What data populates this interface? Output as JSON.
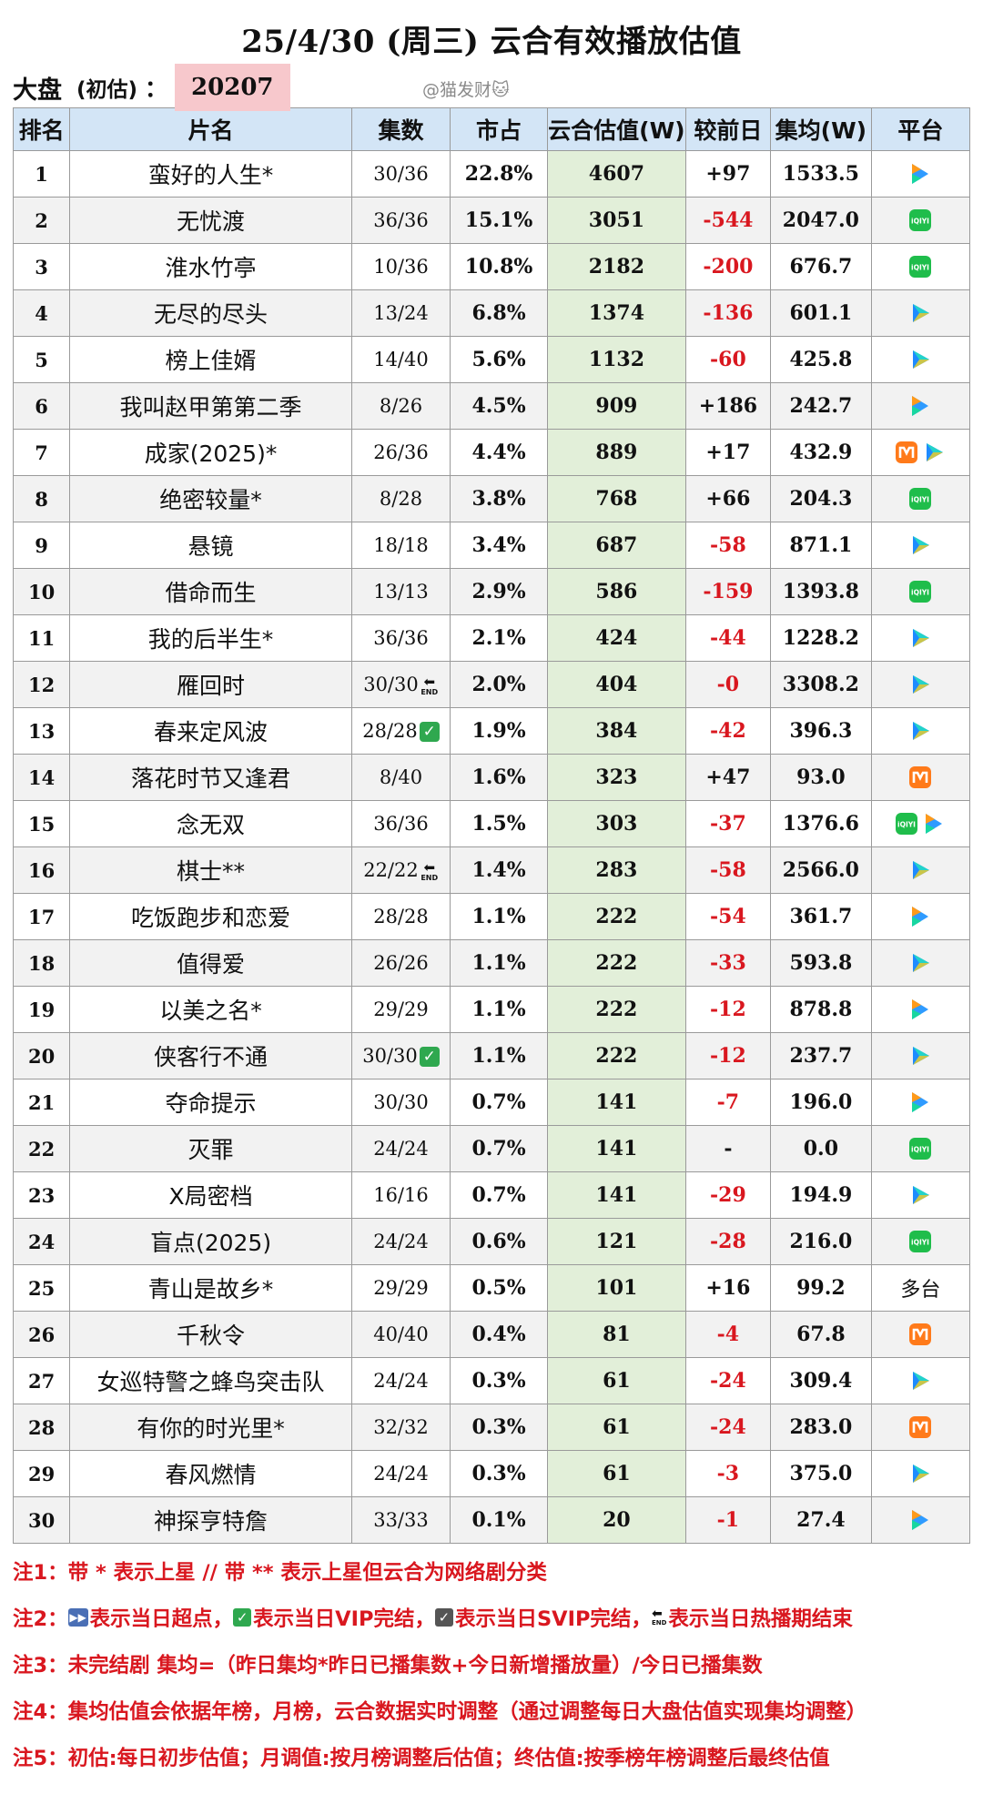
{
  "header": {
    "title": "25/4/30 (周三) 云合有效播放估值",
    "market_label": "大盘",
    "est_label": "(初估)",
    "colon": "：",
    "market_value": "20207",
    "watermark": "@猫发财🐱"
  },
  "columns": [
    "排名",
    "片名",
    "集数",
    "市占",
    "云合估值(W)",
    "较前日",
    "集均(W)",
    "平台"
  ],
  "platforms": {
    "tencent": {
      "colors": [
        "#ff9a1a",
        "#2f9bff",
        "#18d6a0"
      ]
    },
    "iqiyi": {
      "color": "#1fbd4b",
      "text": "iQIYI"
    },
    "youku": {
      "colors": [
        "#1e8bff",
        "#23d3c9",
        "#f5d31b"
      ]
    },
    "mango": {
      "color": "#ff7a1a"
    }
  },
  "rows": [
    {
      "rank": "1",
      "name": "蛮好的人生*",
      "eps": "30/36",
      "share": "22.8%",
      "value": "4607",
      "change": "+97",
      "avg": "1533.5",
      "platforms": [
        "tencent"
      ]
    },
    {
      "rank": "2",
      "name": "无忧渡",
      "eps": "36/36",
      "share": "15.1%",
      "value": "3051",
      "change": "-544",
      "avg": "2047.0",
      "platforms": [
        "iqiyi"
      ]
    },
    {
      "rank": "3",
      "name": "淮水竹亭",
      "eps": "10/36",
      "share": "10.8%",
      "value": "2182",
      "change": "-200",
      "avg": "676.7",
      "platforms": [
        "iqiyi"
      ]
    },
    {
      "rank": "4",
      "name": "无尽的尽头",
      "eps": "13/24",
      "share": "6.8%",
      "value": "1374",
      "change": "-136",
      "avg": "601.1",
      "platforms": [
        "youku"
      ]
    },
    {
      "rank": "5",
      "name": "榜上佳婿",
      "eps": "14/40",
      "share": "5.6%",
      "value": "1132",
      "change": "-60",
      "avg": "425.8",
      "platforms": [
        "youku"
      ]
    },
    {
      "rank": "6",
      "name": "我叫赵甲第第二季",
      "eps": "8/26",
      "share": "4.5%",
      "value": "909",
      "change": "+186",
      "avg": "242.7",
      "platforms": [
        "tencent"
      ]
    },
    {
      "rank": "7",
      "name": "成家(2025)*",
      "eps": "26/36",
      "share": "4.4%",
      "value": "889",
      "change": "+17",
      "avg": "432.9",
      "platforms": [
        "mango",
        "youku"
      ]
    },
    {
      "rank": "8",
      "name": "绝密较量*",
      "eps": "8/28",
      "share": "3.8%",
      "value": "768",
      "change": "+66",
      "avg": "204.3",
      "platforms": [
        "iqiyi"
      ]
    },
    {
      "rank": "9",
      "name": "悬镜",
      "eps": "18/18",
      "share": "3.4%",
      "value": "687",
      "change": "-58",
      "avg": "871.1",
      "platforms": [
        "youku"
      ]
    },
    {
      "rank": "10",
      "name": "借命而生",
      "eps": "13/13",
      "share": "2.9%",
      "value": "586",
      "change": "-159",
      "avg": "1393.8",
      "platforms": [
        "iqiyi"
      ]
    },
    {
      "rank": "11",
      "name": "我的后半生*",
      "eps": "36/36",
      "share": "2.1%",
      "value": "424",
      "change": "-44",
      "avg": "1228.2",
      "platforms": [
        "youku"
      ]
    },
    {
      "rank": "12",
      "name": "雁回时",
      "eps": "30/30",
      "badge": "end",
      "share": "2.0%",
      "value": "404",
      "change": "-0",
      "avg": "3308.2",
      "platforms": [
        "youku"
      ]
    },
    {
      "rank": "13",
      "name": "春来定风波",
      "eps": "28/28",
      "badge": "vip",
      "share": "1.9%",
      "value": "384",
      "change": "-42",
      "avg": "396.3",
      "platforms": [
        "youku"
      ]
    },
    {
      "rank": "14",
      "name": "落花时节又逢君",
      "eps": "8/40",
      "share": "1.6%",
      "value": "323",
      "change": "+47",
      "avg": "93.0",
      "platforms": [
        "mango"
      ]
    },
    {
      "rank": "15",
      "name": "念无双",
      "eps": "36/36",
      "share": "1.5%",
      "value": "303",
      "change": "-37",
      "avg": "1376.6",
      "platforms": [
        "iqiyi",
        "tencent"
      ]
    },
    {
      "rank": "16",
      "name": "棋士**",
      "eps": "22/22",
      "badge": "end",
      "share": "1.4%",
      "value": "283",
      "change": "-58",
      "avg": "2566.0",
      "platforms": [
        "youku"
      ]
    },
    {
      "rank": "17",
      "name": "吃饭跑步和恋爱",
      "eps": "28/28",
      "share": "1.1%",
      "value": "222",
      "change": "-54",
      "avg": "361.7",
      "platforms": [
        "tencent"
      ]
    },
    {
      "rank": "18",
      "name": "值得爱",
      "eps": "26/26",
      "share": "1.1%",
      "value": "222",
      "change": "-33",
      "avg": "593.8",
      "platforms": [
        "youku"
      ]
    },
    {
      "rank": "19",
      "name": "以美之名*",
      "eps": "29/29",
      "share": "1.1%",
      "value": "222",
      "change": "-12",
      "avg": "878.8",
      "platforms": [
        "tencent"
      ]
    },
    {
      "rank": "20",
      "name": "侠客行不通",
      "eps": "30/30",
      "badge": "vip",
      "share": "1.1%",
      "value": "222",
      "change": "-12",
      "avg": "237.7",
      "platforms": [
        "youku"
      ]
    },
    {
      "rank": "21",
      "name": "夺命提示",
      "eps": "30/30",
      "share": "0.7%",
      "value": "141",
      "change": "-7",
      "avg": "196.0",
      "platforms": [
        "tencent"
      ]
    },
    {
      "rank": "22",
      "name": "灭罪",
      "eps": "24/24",
      "share": "0.7%",
      "value": "141",
      "change": "-",
      "avg": "0.0",
      "platforms": [
        "iqiyi"
      ]
    },
    {
      "rank": "23",
      "name": "X局密档",
      "eps": "16/16",
      "share": "0.7%",
      "value": "141",
      "change": "-29",
      "avg": "194.9",
      "platforms": [
        "youku"
      ]
    },
    {
      "rank": "24",
      "name": "盲点(2025)",
      "eps": "24/24",
      "share": "0.6%",
      "value": "121",
      "change": "-28",
      "avg": "216.0",
      "platforms": [
        "iqiyi"
      ]
    },
    {
      "rank": "25",
      "name": "青山是故乡*",
      "eps": "29/29",
      "share": "0.5%",
      "value": "101",
      "change": "+16",
      "avg": "99.2",
      "platform_text": "多台",
      "platforms": []
    },
    {
      "rank": "26",
      "name": "千秋令",
      "eps": "40/40",
      "share": "0.4%",
      "value": "81",
      "change": "-4",
      "avg": "67.8",
      "platforms": [
        "mango"
      ]
    },
    {
      "rank": "27",
      "name": "女巡特警之蜂鸟突击队",
      "eps": "24/24",
      "share": "0.3%",
      "value": "61",
      "change": "-24",
      "avg": "309.4",
      "platforms": [
        "youku"
      ]
    },
    {
      "rank": "28",
      "name": "有你的时光里*",
      "eps": "32/32",
      "share": "0.3%",
      "value": "61",
      "change": "-24",
      "avg": "283.0",
      "platforms": [
        "mango"
      ]
    },
    {
      "rank": "29",
      "name": "春风燃情",
      "eps": "24/24",
      "share": "0.3%",
      "value": "61",
      "change": "-3",
      "avg": "375.0",
      "platforms": [
        "youku"
      ]
    },
    {
      "rank": "30",
      "name": "神探亨特詹",
      "eps": "33/33",
      "share": "0.1%",
      "value": "20",
      "change": "-1",
      "avg": "27.4",
      "platforms": [
        "tencent"
      ]
    }
  ],
  "notes": {
    "n1": "注1：带 * 表示上星 // 带 ** 表示上星但云合为网络剧分类",
    "n2_prefix": "注2：",
    "n2_a": "表示当日超点，",
    "n2_b": "表示当日VIP完结，",
    "n2_c": "表示当日SVIP完结，",
    "n2_d": "表示当日热播期结束",
    "n3": "注3：未完结剧 集均=（昨日集均*昨日已播集数+今日新增播放量）/今日已播集数",
    "n4": "注4：集均估值会依据年榜，月榜，云合数据实时调整（通过调整每日大盘估值实现集均调整）",
    "n5": "注5：初估:每日初步估值；月调值:按月榜调整后估值；终估值:按季榜年榜调整后最终估值"
  },
  "icons": {
    "fast_forward": "fast-forward-icon",
    "vip_check": "green-check-icon",
    "svip_check": "dark-check-icon",
    "end_arrow": "end-arrow-icon"
  },
  "accent_colors": {
    "negative": "#d9171f",
    "header_bg": "#d3e5f6",
    "value_bg": "#e2efd9",
    "market_bg": "#f7c8cc"
  }
}
